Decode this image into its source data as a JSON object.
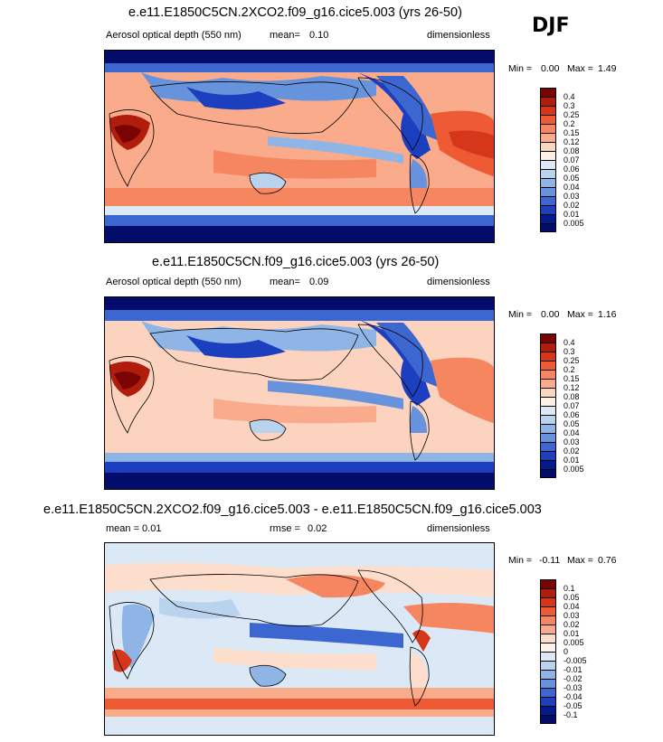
{
  "badge": "DJF",
  "panels": [
    {
      "title": "e.e11.E1850C5CN.2XCO2.f09_g16.cice5.003 (yrs 26-50)",
      "left_label": "Aerosol optical depth (550 nm)",
      "mean_label": "mean=",
      "mean_value": "0.10",
      "units": "dimensionless",
      "min_label": "Min =",
      "min_value": "0.00",
      "max_label": "Max =",
      "max_value": "1.49",
      "levels": [
        "0.4",
        "0.3",
        "0.25",
        "0.2",
        "0.15",
        "0.12",
        "0.08",
        "0.07",
        "0.06",
        "0.05",
        "0.04",
        "0.03",
        "0.02",
        "0.01",
        "0.005"
      ]
    },
    {
      "title": "e.e11.E1850C5CN.f09_g16.cice5.003 (yrs 26-50)",
      "left_label": "Aerosol optical depth (550 nm)",
      "mean_label": "mean=",
      "mean_value": "0.09",
      "units": "dimensionless",
      "min_label": "Min =",
      "min_value": "0.00",
      "max_label": "Max =",
      "max_value": "1.16",
      "levels": [
        "0.4",
        "0.3",
        "0.25",
        "0.2",
        "0.15",
        "0.12",
        "0.08",
        "0.07",
        "0.06",
        "0.05",
        "0.04",
        "0.03",
        "0.02",
        "0.01",
        "0.005"
      ]
    },
    {
      "title": "e.e11.E1850C5CN.2XCO2.f09_g16.cice5.003 - e.e11.E1850C5CN.f09_g16.cice5.003",
      "left_label": "mean =  0.01",
      "mean_label": "rmse =",
      "mean_value": "0.02",
      "units": "dimensionless",
      "min_label": "Min =",
      "min_value": "-0.11",
      "max_label": "Max =",
      "max_value": "0.76",
      "levels": [
        "0.1",
        "0.05",
        "0.04",
        "0.03",
        "0.02",
        "0.01",
        "0.005",
        "0",
        "-0.005",
        "-0.01",
        "-0.02",
        "-0.03",
        "-0.04",
        "-0.05",
        "-0.1"
      ]
    }
  ],
  "colors": {
    "aod_scale": [
      "#7a0403",
      "#b11d0c",
      "#d6371a",
      "#ee5a33",
      "#f58660",
      "#f9ab8c",
      "#fcd3bf",
      "#fdf0e6",
      "#dce9f6",
      "#b9d3ef",
      "#8fb4e6",
      "#6792dc",
      "#3d67d0",
      "#1c3fc0",
      "#061a8f",
      "#030c6b"
    ],
    "diff_scale": [
      "#7a0403",
      "#b11d0c",
      "#d6371a",
      "#ee5a33",
      "#f58660",
      "#f9ab8c",
      "#fdddcc",
      "#fdf3ec",
      "#dbe9f7",
      "#b9d3ef",
      "#8fb4e6",
      "#6792dc",
      "#3d67d0",
      "#1c3fc0",
      "#061a8f",
      "#030c6b"
    ]
  }
}
